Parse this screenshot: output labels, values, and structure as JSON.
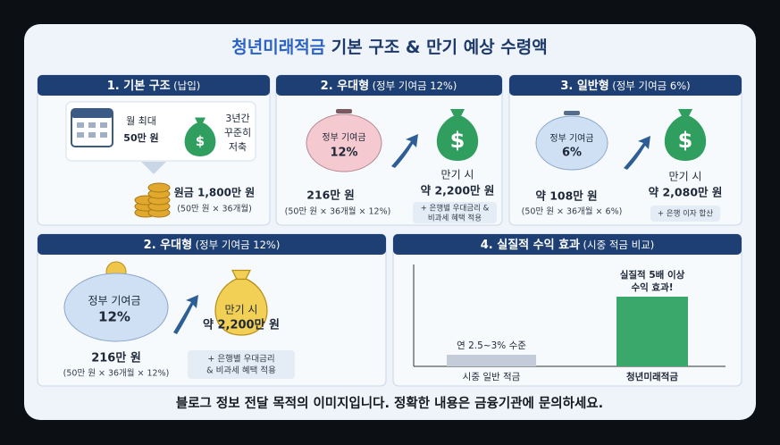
{
  "title": [
    "청년미래적금",
    " 기본 구조 & 만기 예상 수령액"
  ],
  "panels": [
    {
      "header": "1. 기본 구조",
      "subheader": "(납입)",
      "monthly": [
        "월 최대",
        "50만 원"
      ],
      "period": [
        "3년간",
        "꾸준히",
        "저축"
      ],
      "principal": "원금 1,800만 원",
      "formula": "(50만 원 × 36개월)"
    },
    {
      "header": "2. 우대형",
      "subheader": "(정부 기여금 12%)",
      "pig": [
        "정부 기여금",
        "12%"
      ],
      "amount": "216만 원",
      "formula": "(50만 원 × 36개월 × 12%)",
      "maturity": [
        "만기 시",
        "약 2,200만 원"
      ],
      "note": [
        "+ 은행별 우대금리 &",
        "비과세 혜택 적용"
      ]
    },
    {
      "header": "3. 일반형",
      "subheader": "(정부 기여금 6%)",
      "pig": [
        "정부 기여금",
        "6%"
      ],
      "amount": "약 108만 원",
      "formula": "(50만 원 × 36개월 × 6%)",
      "maturity": [
        "만기 시",
        "약 2,080만 원"
      ],
      "note": [
        "+ 은행 이자 합산"
      ]
    },
    {
      "header": "2. 우대형",
      "subheader": "(정부 기여금 12%)",
      "pig": [
        "정부 기여금",
        "12%"
      ],
      "amount": "216만 원",
      "formula": "(50만 원 × 36개월 × 12%)",
      "maturity": [
        "만기 시",
        "약 2,200만 원"
      ],
      "note": [
        "+ 은행별 우대금리",
        "& 비과세 혜택 적용"
      ]
    },
    {
      "header": "4. 실질적 수익 효과",
      "subheader": "(시중 적금 비교)",
      "bars": [
        {
          "label": "시중 일반 적금",
          "note": [
            "연 2.5~3% 수준"
          ],
          "value": 1,
          "color": "#c3ccd8"
        },
        {
          "label": "청년미래적금",
          "note": [
            "실질적 5배 이상",
            "수익 효과!"
          ],
          "value": 6,
          "color": "#3aa86b"
        }
      ]
    }
  ],
  "footer": "블로그 정보 전달 목적의 이미지입니다. 정확한 내용은 금융기관에 문의하세요."
}
